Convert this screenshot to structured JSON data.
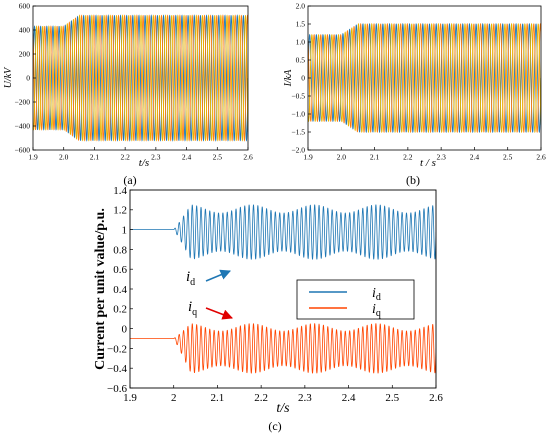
{
  "chart_data": [
    {
      "id": "a",
      "type": "line",
      "panel_label": "(a)",
      "xlabel": "t/s",
      "ylabel": "U/kV",
      "xlim": [
        1.9,
        2.6
      ],
      "ylim": [
        -600,
        600
      ],
      "xticks": [
        "1.9",
        "2.0",
        "2.1",
        "2.2",
        "2.3",
        "2.4",
        "2.5",
        "2.6"
      ],
      "yticks": [
        "600",
        "400",
        "200",
        "0",
        "−200",
        "−400",
        "−600"
      ],
      "grid": false,
      "event_time": 2.0,
      "amplitude_before": 430,
      "amplitude_after": 520,
      "series": [
        {
          "phase_deg": 0,
          "color": "#1f77b4"
        },
        {
          "phase_deg": 120,
          "color": "#ff7f0e"
        },
        {
          "phase_deg": 240,
          "color": "#e8b400"
        }
      ]
    },
    {
      "id": "b",
      "type": "line",
      "panel_label": "(b)",
      "xlabel": "t / s",
      "ylabel": "I/kA",
      "xlim": [
        1.9,
        2.6
      ],
      "ylim": [
        -2.0,
        2.0
      ],
      "xticks": [
        "1.9",
        "2.0",
        "2.1",
        "2.2",
        "2.3",
        "2.4",
        "2.5",
        "2.6"
      ],
      "yticks": [
        "2.0",
        "1.5",
        "1.0",
        "0.5",
        "0",
        "−0.5",
        "−1.0",
        "−1.5",
        "−2.0"
      ],
      "grid": false,
      "event_time": 2.0,
      "amplitude_before": 1.2,
      "amplitude_after": 1.5,
      "series": [
        {
          "phase_deg": 0,
          "color": "#1f77b4"
        },
        {
          "phase_deg": 120,
          "color": "#ff7f0e"
        },
        {
          "phase_deg": 240,
          "color": "#e8b400"
        }
      ]
    },
    {
      "id": "c",
      "type": "line",
      "panel_label": "(c)",
      "xlabel": "t/s",
      "ylabel": "Current per unit value/p.u.",
      "xlim": [
        1.9,
        2.6
      ],
      "ylim": [
        -0.6,
        1.4
      ],
      "xticks": [
        "1.9",
        "2",
        "2.1",
        "2.2",
        "2.3",
        "2.4",
        "2.5",
        "2.6"
      ],
      "yticks": [
        "1.4",
        "1.2",
        "1",
        "0.8",
        "0.6",
        "0.4",
        "0.2",
        "0",
        "−0.2",
        "−0.4",
        "−0.6"
      ],
      "grid": false,
      "legend_position": "center-right",
      "event_time": 2.0,
      "series": [
        {
          "name": "i",
          "subscript": "d",
          "color": "#1f77b4",
          "steady_value": 1.0,
          "band": [
            0.7,
            1.25
          ]
        },
        {
          "name": "i",
          "subscript": "q",
          "color": "#ff4500",
          "steady_value": -0.1,
          "band": [
            -0.45,
            0.05
          ]
        }
      ],
      "annotations": [
        {
          "text": "i",
          "subscript": "d",
          "points_to": "i_d trace",
          "arrow_color": "#1f77b4"
        },
        {
          "text": "i",
          "subscript": "q",
          "points_to": "i_q trace",
          "arrow_color": "#e00000"
        }
      ]
    }
  ]
}
